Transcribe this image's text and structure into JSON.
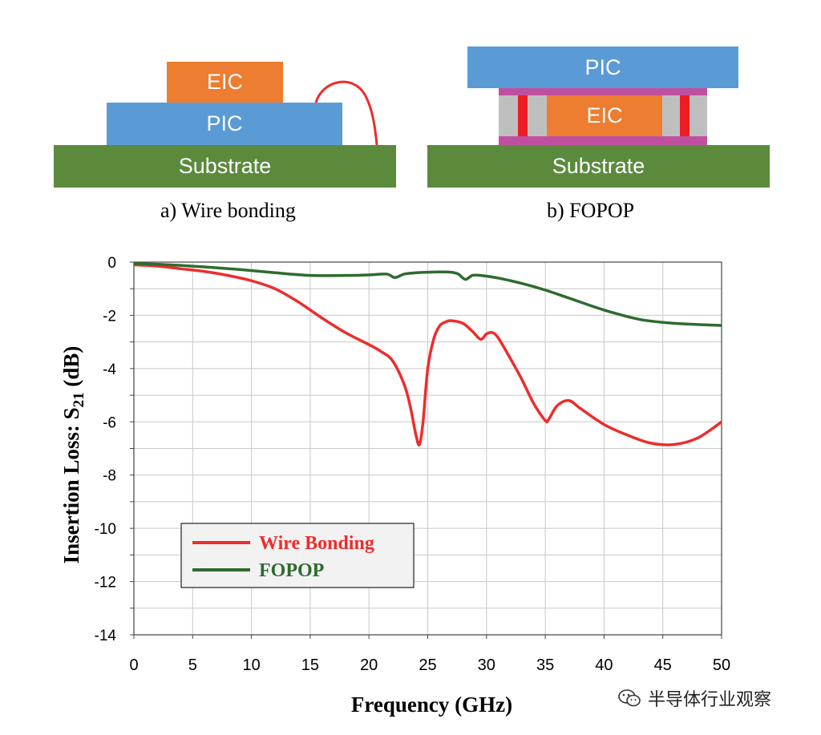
{
  "diagrams": [
    {
      "caption": "a) Wire bonding",
      "labels": {
        "top": "EIC",
        "middle": "PIC",
        "base": "Substrate"
      }
    },
    {
      "caption": "b) FOPOP",
      "labels": {
        "top": "PIC",
        "middle": "EIC",
        "base": "Substrate"
      }
    }
  ],
  "colors": {
    "substrate": "#5b8a3c",
    "pic": "#5b9bd5",
    "eic": "#ed7d31",
    "rdl": "#c0509f",
    "mold": "#bfbfbf",
    "via": "#ee1c25",
    "wire": "#ee2c2c"
  },
  "chart_data": {
    "type": "line",
    "title": "",
    "xlabel": "Frequency (GHz)",
    "ylabel_main": "Insertion Loss: S",
    "ylabel_sub": "21",
    "ylabel_unit": " (dB)",
    "xlim": [
      0,
      50
    ],
    "ylim": [
      -14,
      0
    ],
    "xticks": [
      0,
      5,
      10,
      15,
      20,
      25,
      30,
      35,
      40,
      45,
      50
    ],
    "yticks": [
      0,
      -2,
      -4,
      -6,
      -8,
      -10,
      -12,
      -14
    ],
    "grid": true,
    "legend_position": "lower-left",
    "series": [
      {
        "name": "Wire Bonding",
        "color": "#ee2c2c",
        "x": [
          0,
          2,
          4,
          6,
          8,
          10,
          12,
          14,
          16,
          18,
          20,
          21,
          22,
          23,
          23.5,
          24,
          24.3,
          24.6,
          25,
          25.5,
          26,
          26.5,
          27,
          28,
          28.8,
          29.5,
          30,
          30.5,
          31,
          32,
          33,
          34,
          35,
          35.3,
          36,
          37,
          38,
          40,
          42,
          44,
          46,
          48,
          50
        ],
        "y": [
          -0.1,
          -0.15,
          -0.25,
          -0.35,
          -0.5,
          -0.7,
          -1.0,
          -1.5,
          -2.1,
          -2.65,
          -3.1,
          -3.35,
          -3.7,
          -4.6,
          -5.4,
          -6.5,
          -6.85,
          -6.0,
          -4.0,
          -2.9,
          -2.4,
          -2.25,
          -2.2,
          -2.3,
          -2.6,
          -2.9,
          -2.7,
          -2.65,
          -2.85,
          -3.6,
          -4.4,
          -5.3,
          -5.95,
          -5.9,
          -5.4,
          -5.2,
          -5.5,
          -6.1,
          -6.5,
          -6.8,
          -6.85,
          -6.6,
          -6.0
        ]
      },
      {
        "name": "FOPOP",
        "color": "#2e6b2e",
        "x": [
          0,
          3,
          6,
          9,
          12,
          15,
          18,
          20,
          21.5,
          22.2,
          23,
          24,
          25,
          26,
          27,
          27.6,
          28.2,
          28.8,
          29.5,
          31,
          33,
          35,
          37,
          40,
          43,
          46,
          50
        ],
        "y": [
          -0.05,
          -0.1,
          -0.18,
          -0.28,
          -0.4,
          -0.5,
          -0.5,
          -0.48,
          -0.45,
          -0.58,
          -0.45,
          -0.4,
          -0.38,
          -0.37,
          -0.38,
          -0.45,
          -0.65,
          -0.5,
          -0.5,
          -0.6,
          -0.8,
          -1.05,
          -1.35,
          -1.8,
          -2.15,
          -2.3,
          -2.38
        ]
      }
    ]
  },
  "watermark": "半导体行业观察"
}
